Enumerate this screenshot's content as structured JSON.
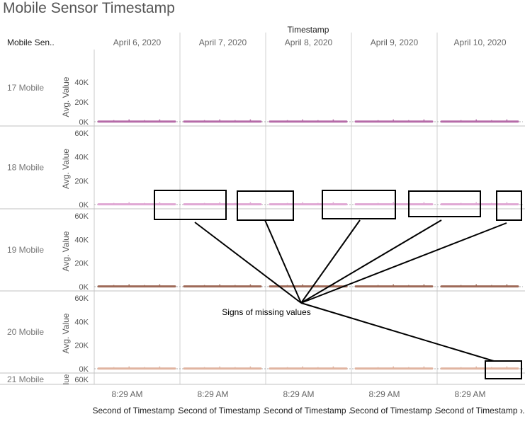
{
  "title": "Mobile Sensor Timestamp",
  "header": {
    "column_axis_title": "Timestamp",
    "row_field_label": "Mobile Sen.."
  },
  "chart_data": {
    "type": "line",
    "title": "Mobile Sensor Timestamp",
    "column_facets": [
      "April 6, 2020",
      "April 7, 2020",
      "April 8, 2020",
      "April 9, 2020",
      "April 10, 2020"
    ],
    "row_facets": [
      {
        "name": "17 Mobile",
        "ylabel": "Avg. Value",
        "yticks": [
          "0K",
          "20K",
          "40K"
        ],
        "ylim": [
          0,
          50000
        ],
        "color": "#b56ba8"
      },
      {
        "name": "18 Mobile",
        "ylabel": "Avg. Value",
        "yticks": [
          "0K",
          "20K",
          "40K",
          "60K"
        ],
        "ylim": [
          0,
          60000
        ],
        "color": "#e0a8d4"
      },
      {
        "name": "19 Mobile",
        "ylabel": "Avg. Value",
        "yticks": [
          "0K",
          "20K",
          "40K",
          "60K"
        ],
        "ylim": [
          0,
          60000
        ],
        "color": "#9e6a58"
      },
      {
        "name": "20 Mobile",
        "ylabel": "Avg. Value",
        "yticks": [
          "0K",
          "20K",
          "40K",
          "60K"
        ],
        "ylim": [
          0,
          60000
        ],
        "color": "#e0b4a0"
      },
      {
        "name": "21 Mobile",
        "ylabel": "lue",
        "yticks": [
          "60K"
        ],
        "ylim": [
          0,
          60000
        ],
        "color": "#cccccc"
      }
    ],
    "series_value_level": 200,
    "x_tick_label": "8:29 AM",
    "xlabel": "Second of Timestamp ..",
    "x_overflow_marker": "›",
    "annotation": {
      "text": "Signs of missing values",
      "boxes": 6
    },
    "grid": true
  }
}
